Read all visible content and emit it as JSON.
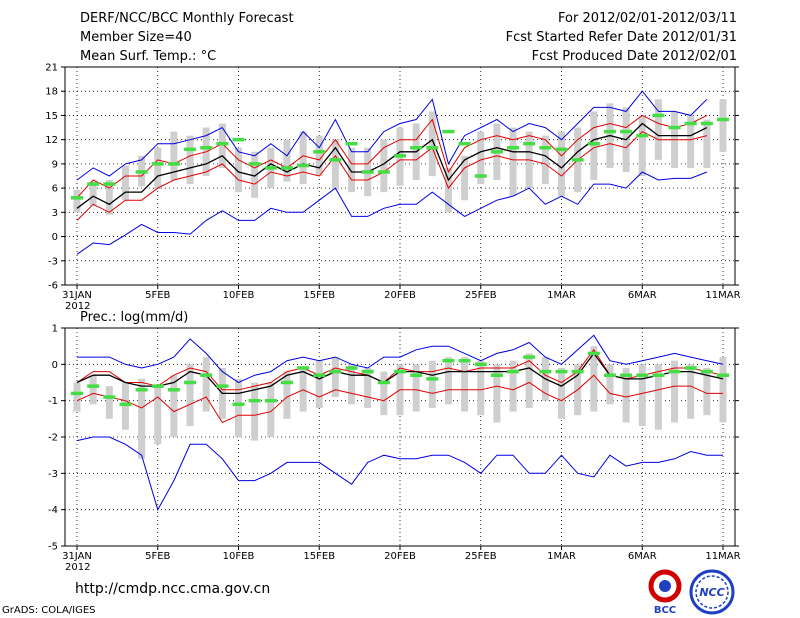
{
  "header": {
    "title": "DERF/NCC/BCC Monthly Forecast",
    "member_size": "Member Size=40",
    "variable": "Mean Surf. Temp.: °C",
    "forecast_period": "For 2012/02/01-2012/03/11",
    "started_refer": "Fcst Started Refer Date 2012/01/31",
    "produced": "Fcst Produced Date 2012/02/01"
  },
  "footer": {
    "url": "http://cmdp.ncc.cma.gov.cn",
    "grads": "GrADS: COLA/IGES",
    "logo_bcc": "BCC",
    "logo_ncc": "NCC"
  },
  "colors": {
    "mean": "#000000",
    "spread": "#e00000",
    "envelope": "#0000e0",
    "box": "#cfcfcf",
    "climate": "#44dd44",
    "grid": "#000000"
  },
  "chart_data": [
    {
      "type": "line",
      "title": "Mean Surf. Temp.: °C",
      "xlabel": "",
      "ylabel": "°C",
      "ylim": [
        -6,
        21
      ],
      "yticks": [
        -6,
        -3,
        0,
        3,
        6,
        9,
        12,
        15,
        18,
        21
      ],
      "xticks": [
        {
          "day": 0,
          "label": "31JAN",
          "sub": "2012"
        },
        {
          "day": 5,
          "label": "5FEB"
        },
        {
          "day": 10,
          "label": "10FEB"
        },
        {
          "day": 15,
          "label": "15FEB"
        },
        {
          "day": 20,
          "label": "20FEB"
        },
        {
          "day": 25,
          "label": "25FEB"
        },
        {
          "day": 30,
          "label": "1MAR"
        },
        {
          "day": 35,
          "label": "6MAR"
        },
        {
          "day": 40,
          "label": "11MAR"
        }
      ],
      "x_start_day": 0,
      "box_low": [
        3.0,
        3.8,
        2.7,
        4.5,
        6.2,
        5.9,
        7.0,
        6.5,
        7.5,
        8.5,
        5.5,
        4.8,
        6.0,
        6.8,
        6.5,
        7.5,
        5.8,
        5.5,
        5.0,
        5.5,
        6.3,
        7.0,
        7.5,
        3.0,
        4.5,
        6.5,
        7.0,
        5.0,
        6.0,
        6.5,
        5.0,
        5.5,
        7.0,
        8.5,
        8.0,
        7.5,
        9.5,
        8.5,
        8.5,
        8.5,
        10.5
      ],
      "box_high": [
        5.8,
        6.8,
        7.0,
        8.8,
        10.0,
        11.0,
        13.0,
        12.5,
        13.5,
        14.0,
        11.0,
        10.5,
        11.0,
        12.0,
        13.0,
        12.5,
        12.0,
        11.0,
        11.0,
        12.0,
        13.5,
        14.0,
        15.5,
        8.5,
        10.0,
        13.0,
        14.0,
        13.5,
        13.0,
        12.5,
        13.0,
        13.5,
        15.5,
        16.5,
        16.0,
        15.0,
        17.0,
        15.5,
        15.0,
        14.5,
        17.0
      ],
      "series": [
        {
          "name": "upper envelope",
          "color": "#0000e0",
          "values": [
            7.0,
            8.5,
            7.5,
            9.0,
            9.5,
            11.5,
            11.5,
            12.0,
            12.5,
            13.5,
            10.5,
            10.0,
            11.5,
            10.0,
            13.0,
            11.0,
            14.5,
            10.5,
            10.5,
            13.0,
            14.0,
            14.5,
            17.0,
            9.0,
            12.5,
            13.5,
            14.5,
            13.0,
            14.0,
            13.5,
            12.0,
            14.0,
            16.0,
            16.0,
            15.5,
            18.0,
            15.5,
            15.5,
            15.0,
            17.0,
            null
          ]
        },
        {
          "name": "spread upper",
          "color": "#e00000",
          "values": [
            4.8,
            7.0,
            6.0,
            7.5,
            7.5,
            9.5,
            9.0,
            10.0,
            10.5,
            11.5,
            9.5,
            8.5,
            9.5,
            8.5,
            10.0,
            9.5,
            12.0,
            9.0,
            9.0,
            11.0,
            12.0,
            12.0,
            14.5,
            8.0,
            11.0,
            12.0,
            12.5,
            12.0,
            12.5,
            12.0,
            10.0,
            12.0,
            13.5,
            14.0,
            13.5,
            15.0,
            14.0,
            13.5,
            14.0,
            15.0,
            null
          ]
        },
        {
          "name": "ensemble mean",
          "color": "#000000",
          "values": [
            3.5,
            5.0,
            4.0,
            5.5,
            5.5,
            7.5,
            8.0,
            8.5,
            9.0,
            10.0,
            8.0,
            7.5,
            9.0,
            8.0,
            9.0,
            8.5,
            11.0,
            8.0,
            8.0,
            9.0,
            10.5,
            10.5,
            12.0,
            7.0,
            9.5,
            10.5,
            11.0,
            10.5,
            10.5,
            10.0,
            8.5,
            10.5,
            12.0,
            12.5,
            12.0,
            14.0,
            12.5,
            12.5,
            12.5,
            13.5,
            null
          ]
        },
        {
          "name": "spread lower",
          "color": "#e00000",
          "values": [
            2.0,
            4.0,
            3.0,
            4.5,
            4.5,
            6.0,
            7.0,
            7.5,
            8.0,
            9.0,
            7.0,
            6.5,
            8.0,
            7.5,
            8.0,
            7.5,
            10.0,
            7.0,
            7.0,
            8.0,
            9.5,
            9.5,
            11.0,
            6.0,
            8.5,
            9.5,
            10.0,
            9.5,
            9.5,
            9.0,
            7.5,
            9.5,
            11.0,
            11.5,
            11.0,
            13.0,
            12.0,
            12.0,
            12.0,
            12.5,
            null
          ]
        },
        {
          "name": "lower envelope",
          "color": "#0000e0",
          "values": [
            -2.2,
            -0.8,
            -1.0,
            0.2,
            1.5,
            0.5,
            0.5,
            0.3,
            2.0,
            3.2,
            2.0,
            2.0,
            3.5,
            3.0,
            3.0,
            4.5,
            6.0,
            2.5,
            2.5,
            3.5,
            4.0,
            4.0,
            5.5,
            4.0,
            2.5,
            3.5,
            4.5,
            5.0,
            6.0,
            4.0,
            5.0,
            4.0,
            6.5,
            6.5,
            6.0,
            8.0,
            7.0,
            7.2,
            7.2,
            8.0,
            null
          ]
        }
      ],
      "climate_days": [
        0,
        1,
        2,
        4,
        5,
        6,
        7,
        8,
        9,
        10,
        11,
        12,
        13,
        14,
        15,
        16,
        17,
        18,
        19,
        20,
        21,
        22,
        23,
        24,
        25,
        26,
        27,
        28,
        29,
        30,
        31,
        32,
        33,
        34,
        35,
        36,
        37,
        38,
        39,
        40
      ],
      "climate_values": [
        4.8,
        6.5,
        6.5,
        8.0,
        9.0,
        9.0,
        10.8,
        11.0,
        11.5,
        12.0,
        9.0,
        8.5,
        8.5,
        8.8,
        10.5,
        9.5,
        11.5,
        8.0,
        8.0,
        10.0,
        11.0,
        11.0,
        13.0,
        11.5,
        7.5,
        10.5,
        11.0,
        11.5,
        11.0,
        10.8,
        9.5,
        11.5,
        13.0,
        13.0,
        12.5,
        15.0,
        13.5,
        14.0,
        14.0,
        14.5
      ]
    },
    {
      "type": "line",
      "title": "Prec.: log(mm/d)",
      "xlabel": "",
      "ylabel": "log(mm/d)",
      "ylim": [
        -5,
        1
      ],
      "yticks": [
        -5,
        -4,
        -3,
        -2,
        -1,
        0,
        1
      ],
      "xticks": [
        {
          "day": 0,
          "label": "31JAN",
          "sub": "2012"
        },
        {
          "day": 5,
          "label": "5FEB"
        },
        {
          "day": 10,
          "label": "10FEB"
        },
        {
          "day": 15,
          "label": "15FEB"
        },
        {
          "day": 20,
          "label": "20FEB"
        },
        {
          "day": 25,
          "label": "25FEB"
        },
        {
          "day": 30,
          "label": "1MAR"
        },
        {
          "day": 35,
          "label": "6MAR"
        },
        {
          "day": 40,
          "label": "11MAR"
        }
      ],
      "x_start_day": 0,
      "box_low": [
        -1.3,
        -1.1,
        -1.5,
        -1.8,
        -2.6,
        -2.2,
        -2.0,
        -1.7,
        -1.3,
        -1.5,
        -2.0,
        -2.1,
        -2.0,
        -1.5,
        -1.3,
        -1.2,
        -0.9,
        -1.1,
        -1.2,
        -1.4,
        -1.4,
        -1.3,
        -1.2,
        -1.1,
        -1.3,
        -1.4,
        -1.6,
        -1.3,
        -1.2,
        -1.0,
        -1.5,
        -1.4,
        -1.3,
        -1.1,
        -1.6,
        -1.7,
        -1.8,
        -1.6,
        -1.5,
        -1.4,
        -1.6
      ],
      "box_high": [
        -0.5,
        -0.3,
        -0.6,
        -0.5,
        -0.4,
        -0.6,
        -0.3,
        0.0,
        0.2,
        -0.1,
        -0.4,
        -0.5,
        -0.5,
        -0.2,
        -0.1,
        0.1,
        0.2,
        0.0,
        -0.1,
        -0.2,
        0.0,
        0.0,
        0.1,
        0.2,
        0.2,
        0.1,
        0.0,
        0.1,
        0.3,
        0.2,
        -0.1,
        0.0,
        0.5,
        0.0,
        -0.1,
        0.0,
        0.0,
        0.1,
        0.0,
        -0.1,
        0.2
      ],
      "series": [
        {
          "name": "upper envelope",
          "color": "#0000e0",
          "values": [
            0.2,
            0.2,
            0.2,
            0.0,
            -0.1,
            0.0,
            0.2,
            0.7,
            0.3,
            -0.2,
            -0.5,
            -0.3,
            -0.2,
            0.1,
            0.2,
            0.1,
            0.2,
            0.0,
            -0.1,
            0.2,
            0.2,
            0.4,
            0.5,
            0.5,
            0.3,
            0.1,
            0.3,
            0.4,
            0.6,
            0.2,
            0.0,
            0.4,
            0.8,
            0.1,
            0.0,
            0.1,
            0.2,
            0.3,
            0.2,
            0.1,
            0.0
          ]
        },
        {
          "name": "spread upper",
          "color": "#e00000",
          "values": [
            -0.5,
            -0.2,
            -0.2,
            -0.5,
            -0.5,
            -0.6,
            -0.3,
            -0.1,
            -0.2,
            -0.7,
            -0.7,
            -0.6,
            -0.5,
            -0.2,
            -0.1,
            -0.3,
            -0.1,
            -0.2,
            -0.3,
            -0.5,
            -0.1,
            -0.2,
            -0.2,
            -0.1,
            -0.2,
            -0.1,
            -0.1,
            -0.1,
            0.1,
            -0.3,
            -0.5,
            -0.2,
            0.4,
            -0.3,
            -0.4,
            -0.3,
            -0.2,
            -0.1,
            -0.1,
            -0.2,
            -0.3
          ]
        },
        {
          "name": "ensemble mean",
          "color": "#000000",
          "values": [
            -0.5,
            -0.3,
            -0.3,
            -0.5,
            -0.6,
            -0.6,
            -0.5,
            -0.2,
            -0.3,
            -0.8,
            -0.8,
            -0.7,
            -0.6,
            -0.3,
            -0.2,
            -0.4,
            -0.2,
            -0.3,
            -0.3,
            -0.5,
            -0.2,
            -0.2,
            -0.3,
            -0.2,
            -0.2,
            -0.2,
            -0.2,
            -0.2,
            -0.1,
            -0.4,
            -0.6,
            -0.3,
            0.3,
            -0.3,
            -0.4,
            -0.4,
            -0.3,
            -0.2,
            -0.2,
            -0.3,
            -0.4
          ]
        },
        {
          "name": "spread lower",
          "color": "#e00000",
          "values": [
            -1.0,
            -0.8,
            -0.9,
            -1.0,
            -1.2,
            -0.9,
            -1.3,
            -1.1,
            -0.9,
            -1.6,
            -1.4,
            -1.4,
            -1.3,
            -0.9,
            -0.7,
            -0.9,
            -0.7,
            -0.8,
            -0.9,
            -1.0,
            -0.7,
            -0.7,
            -0.8,
            -0.7,
            -0.7,
            -0.7,
            -0.6,
            -0.7,
            -0.5,
            -0.8,
            -1.0,
            -0.7,
            -0.3,
            -0.8,
            -0.9,
            -0.8,
            -0.7,
            -0.6,
            -0.6,
            -0.8,
            -0.8
          ]
        },
        {
          "name": "lower envelope",
          "color": "#0000e0",
          "values": [
            -2.1,
            -2.0,
            -2.0,
            -2.2,
            -2.5,
            -4.0,
            -3.2,
            -2.2,
            -2.2,
            -2.6,
            -3.2,
            -3.2,
            -3.0,
            -2.7,
            -2.7,
            -2.7,
            -3.0,
            -3.3,
            -2.7,
            -2.5,
            -2.6,
            -2.6,
            -2.5,
            -2.5,
            -2.7,
            -3.0,
            -2.5,
            -2.5,
            -3.0,
            -3.0,
            -2.5,
            -3.0,
            -3.1,
            -2.5,
            -2.8,
            -2.7,
            -2.7,
            -2.6,
            -2.4,
            -2.5,
            -2.5
          ]
        }
      ],
      "climate_days": [
        0,
        1,
        2,
        3,
        4,
        5,
        6,
        7,
        8,
        9,
        10,
        11,
        12,
        13,
        14,
        15,
        16,
        17,
        18,
        19,
        20,
        21,
        22,
        23,
        24,
        25,
        26,
        27,
        28,
        29,
        30,
        31,
        32,
        33,
        34,
        35,
        36,
        37,
        38,
        39,
        40
      ],
      "climate_values": [
        -0.8,
        -0.6,
        -0.9,
        -1.1,
        -0.7,
        -0.6,
        -0.7,
        -0.5,
        -0.3,
        -0.6,
        -1.1,
        -1.0,
        -1.0,
        -0.5,
        -0.1,
        -0.3,
        -0.2,
        -0.1,
        -0.2,
        -0.5,
        -0.2,
        -0.3,
        -0.4,
        0.1,
        0.1,
        0.0,
        -0.3,
        -0.2,
        0.2,
        -0.2,
        -0.2,
        -0.2,
        0.3,
        -0.3,
        -0.3,
        -0.3,
        -0.3,
        -0.2,
        -0.1,
        -0.2,
        -0.3
      ]
    }
  ]
}
